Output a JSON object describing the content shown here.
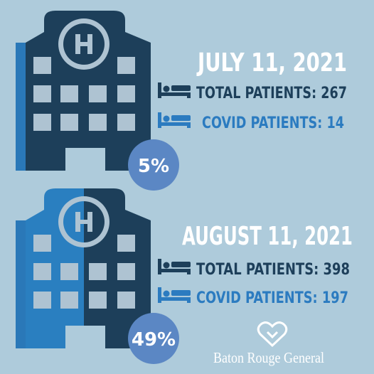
{
  "panels": [
    {
      "date": "JULY 11, 2021",
      "total_label": "TOTAL PATIENTS:",
      "total": 267,
      "covid_label": "COVID PATIENTS:",
      "covid": 14,
      "percent": "5%"
    },
    {
      "date": "AUGUST 11, 2021",
      "total_label": "TOTAL PATIENTS:",
      "total": 398,
      "covid_label": "COVID PATIENTS:",
      "covid": 197,
      "percent": "49%"
    }
  ],
  "logo": "Baton Rouge General"
}
